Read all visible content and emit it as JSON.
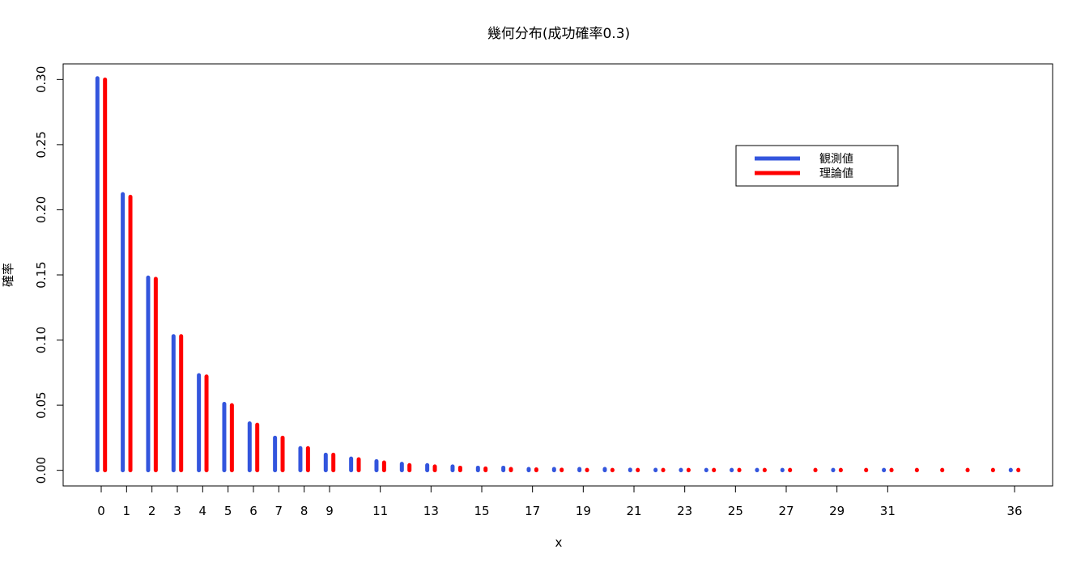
{
  "chart_data": {
    "type": "bar",
    "title": "幾何分布(成功確率0.3)",
    "xlabel": "x",
    "ylabel": "確率",
    "xlim": [
      -1.5,
      37.5
    ],
    "ylim": [
      -0.012,
      0.312
    ],
    "xticks": [
      0,
      1,
      2,
      3,
      4,
      5,
      6,
      7,
      8,
      9,
      11,
      13,
      15,
      17,
      19,
      21,
      23,
      25,
      27,
      29,
      31,
      36
    ],
    "yticks": [
      "0.00",
      "0.05",
      "0.10",
      "0.15",
      "0.20",
      "0.25",
      "0.30"
    ],
    "grid": false,
    "legend_position": "top-right",
    "series": [
      {
        "name": "観測値",
        "color": "#3355dd",
        "x": [
          0,
          1,
          2,
          3,
          4,
          5,
          6,
          7,
          8,
          9,
          10,
          11,
          12,
          13,
          14,
          15,
          16,
          17,
          18,
          19,
          20,
          21,
          22,
          23,
          24,
          25,
          26,
          27,
          29,
          31,
          36
        ],
        "values": [
          0.301,
          0.212,
          0.148,
          0.103,
          0.073,
          0.051,
          0.036,
          0.025,
          0.017,
          0.012,
          0.009,
          0.007,
          0.005,
          0.004,
          0.003,
          0.002,
          0.002,
          0.001,
          0.001,
          0.001,
          0.001,
          0.0005,
          0.0004,
          0.0003,
          0.0002,
          0.0002,
          0.0001,
          0.0001,
          0.0001,
          0.0001,
          0.0001
        ]
      },
      {
        "name": "理論値",
        "color": "#ff0000",
        "x": [
          0,
          1,
          2,
          3,
          4,
          5,
          6,
          7,
          8,
          9,
          10,
          11,
          12,
          13,
          14,
          15,
          16,
          17,
          18,
          19,
          20,
          21,
          22,
          23,
          24,
          25,
          26,
          27,
          28,
          29,
          30,
          31,
          32,
          33,
          34,
          35,
          36
        ],
        "values": [
          0.3,
          0.21,
          0.147,
          0.103,
          0.072,
          0.05,
          0.035,
          0.025,
          0.017,
          0.012,
          0.0085,
          0.006,
          0.004,
          0.003,
          0.002,
          0.0014,
          0.001,
          0.0007,
          0.0005,
          0.0003,
          0.0002,
          0.00017,
          0.00012,
          8e-05,
          6e-05,
          4e-05,
          3e-05,
          2e-05,
          1e-05,
          1e-05,
          1e-05,
          0,
          0,
          0,
          0,
          0,
          0
        ]
      }
    ]
  }
}
